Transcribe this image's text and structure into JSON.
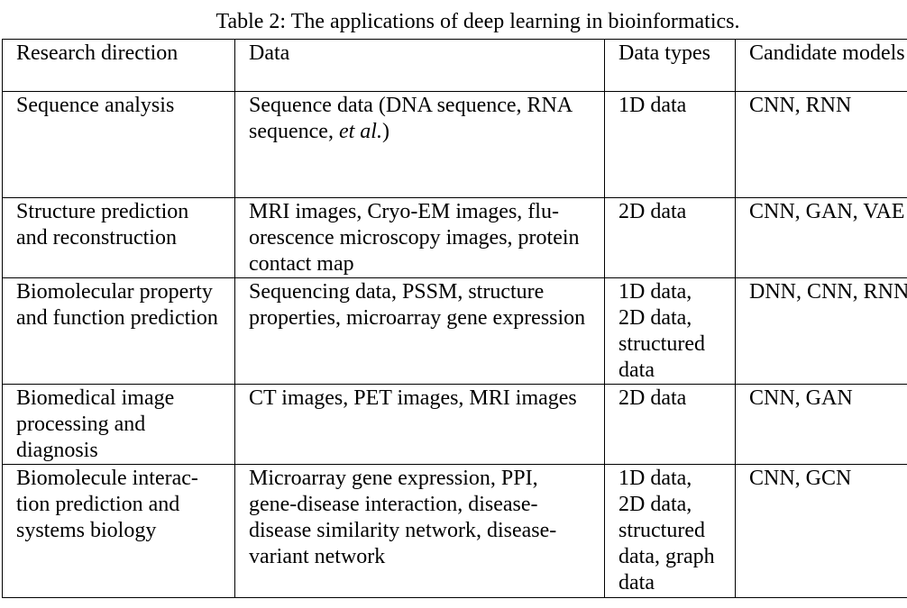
{
  "caption": "Table 2: The applications of deep learning in bioinformatics.",
  "table": {
    "headers": [
      "Research direction",
      "Data",
      "Data types",
      "Candidate models"
    ],
    "rows": [
      {
        "direction": "Sequence analysis",
        "data_pre": "Sequence data (DNA sequence, RNA sequence, ",
        "data_ital": "et al.",
        "data_post": ")",
        "types": "1D data",
        "models": "CNN, RNN"
      },
      {
        "direction": "Structure prediction and reconstruction",
        "data": "MRI images, Cryo-EM images, flu­orescence microscopy images, pro­tein contact map",
        "types": "2D data",
        "models": "CNN, GAN, VAE"
      },
      {
        "direction": "Biomolecular prop­erty and function prediction",
        "data": "Sequencing data, PSSM, structure properties, microarray gene expres­sion",
        "types": "1D data, 2D data, structured data",
        "models": "DNN, CNN, RNN"
      },
      {
        "direction": "Biomedical image processing and diagnosis",
        "data": "CT images, PET images, MRI im­ages",
        "types": "2D data",
        "models": "CNN, GAN"
      },
      {
        "direction": "Biomolecule interac­tion prediction and systems biology",
        "data": "Microarray gene expression, PPI, gene-disease interaction, disease-disease similarity network, disease-variant network",
        "types": "1D data, 2D data, structured data, graph data",
        "models": "CNN, GCN"
      }
    ]
  }
}
